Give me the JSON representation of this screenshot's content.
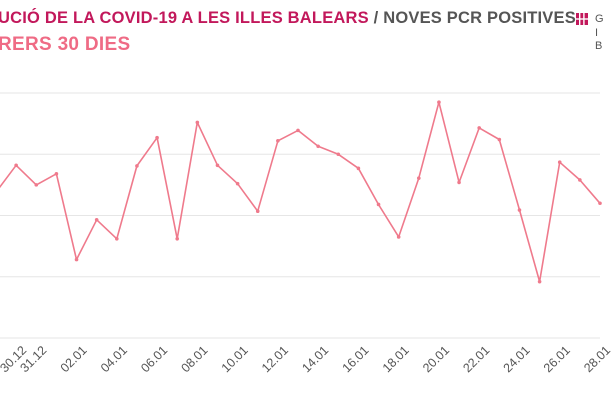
{
  "header": {
    "title_main": "UCIÓ DE LA COVID-19 A LES ILLES BALEARS",
    "title_separator": "/",
    "title_sub": "NOVES PCR POSITIVES",
    "subtitle": "RERS 30 DIES"
  },
  "logo": {
    "lines": [
      "G",
      "I",
      "B"
    ]
  },
  "colors": {
    "title": "#c2185b",
    "subtitle": "#ef6b85",
    "line": "#ef7a8c",
    "grid": "#e6e6e6",
    "label": "#555555"
  },
  "chart_data": {
    "type": "line",
    "title": "",
    "xlabel": "",
    "ylabel": "",
    "grid": true,
    "y_tick_labels_visible": false,
    "x_tick_labels": [
      "30.12",
      "31.12",
      "02.01",
      "04.01",
      "06.01",
      "08.01",
      "10.01",
      "12.01",
      "14.01",
      "16.01",
      "18.01",
      "20.01",
      "22.01",
      "24.01",
      "26.01",
      "28.01"
    ],
    "x": [
      "29.12",
      "30.12",
      "31.12",
      "01.01",
      "02.01",
      "03.01",
      "04.01",
      "05.01",
      "06.01",
      "07.01",
      "08.01",
      "09.01",
      "10.01",
      "11.01",
      "12.01",
      "13.01",
      "14.01",
      "15.01",
      "16.01",
      "17.01",
      "18.01",
      "19.01",
      "20.01",
      "21.01",
      "22.01",
      "23.01",
      "24.01",
      "25.01",
      "26.01",
      "27.01",
      "28.01"
    ],
    "ylim": [
      0,
      400
    ],
    "y_gridlines": [
      0,
      100,
      200,
      300,
      400
    ],
    "series": [
      {
        "values": [
          238,
          282,
          250,
          268,
          128,
          193,
          162,
          281,
          327,
          162,
          352,
          282,
          252,
          207,
          322,
          339,
          313,
          300,
          277,
          218,
          165,
          261,
          385,
          254,
          343,
          324,
          209,
          92,
          287,
          258,
          220
        ]
      }
    ]
  }
}
